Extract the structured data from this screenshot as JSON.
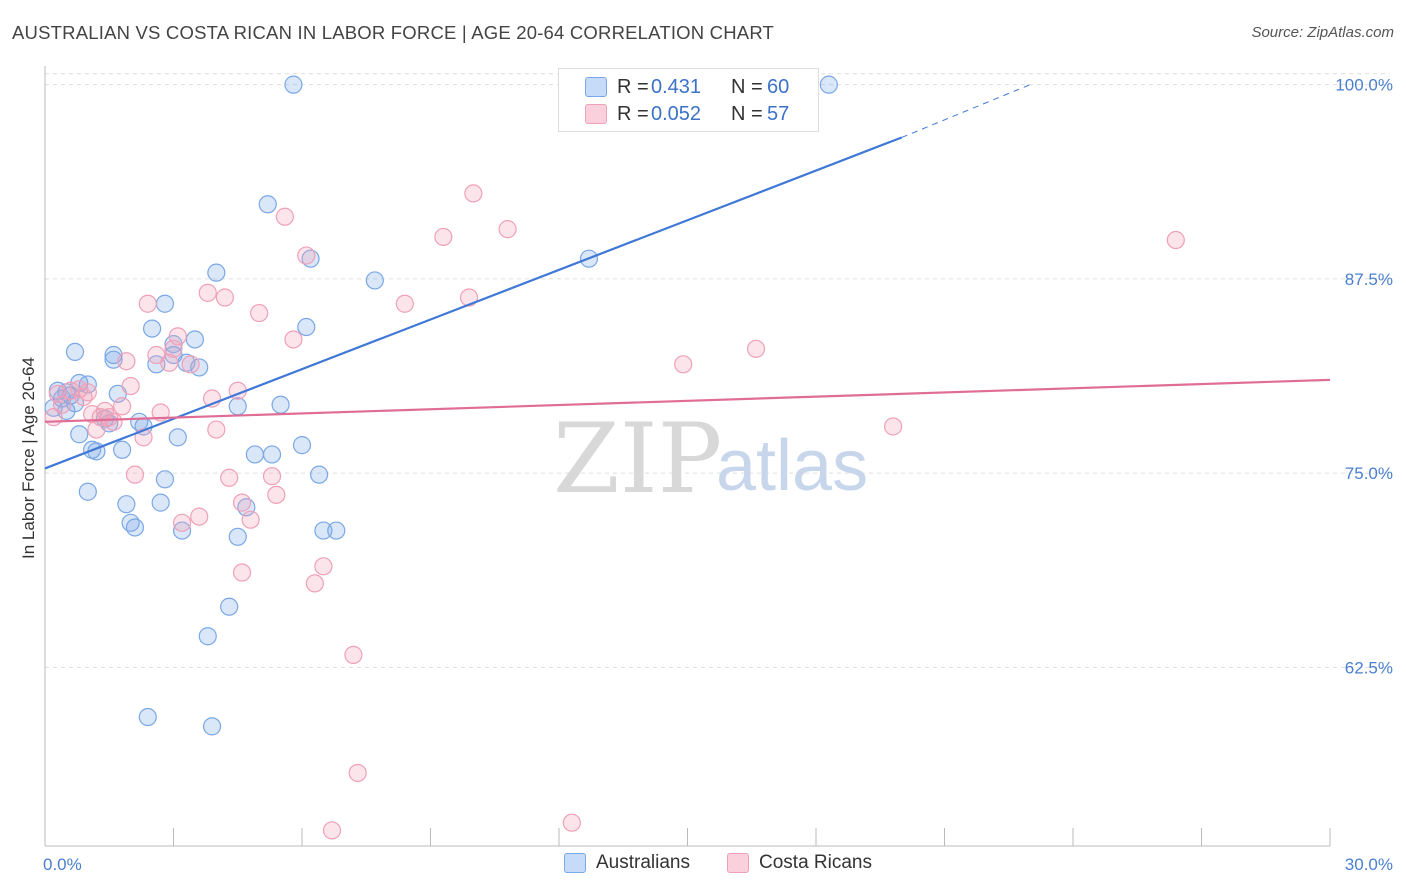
{
  "title": "AUSTRALIAN VS COSTA RICAN IN LABOR FORCE | AGE 20-64 CORRELATION CHART",
  "source": "Source: ZipAtlas.com",
  "watermark": {
    "zip": "ZIP",
    "atlas": "atlas"
  },
  "legend": {
    "rows": [
      {
        "r_label": "R =",
        "r_value": "0.431",
        "n_label": "N =",
        "n_value": "60",
        "color": "#7aa8e6"
      },
      {
        "r_label": "R =",
        "r_value": "0.052",
        "n_label": "N =",
        "n_value": "57",
        "color": "#f0a0b8"
      }
    ]
  },
  "bottom_legend": [
    {
      "label": "Australians",
      "color": "#7aa8e6"
    },
    {
      "label": "Costa Ricans",
      "color": "#f0a0b8"
    }
  ],
  "chart_data": {
    "type": "scatter",
    "title": "AUSTRALIAN VS COSTA RICAN IN LABOR FORCE | AGE 20-64 CORRELATION CHART",
    "xlabel": "",
    "ylabel": "In Labor Force | Age 20-64",
    "xlim": [
      0,
      30
    ],
    "ylim": [
      51,
      101.2
    ],
    "x_tick_labels": [
      {
        "value": 0,
        "label": "0.0%"
      },
      {
        "value": 30,
        "label": "30.0%"
      }
    ],
    "y_tick_labels": [
      {
        "value": 100,
        "label": "100.0%"
      },
      {
        "value": 87.5,
        "label": "87.5%"
      },
      {
        "value": 75,
        "label": "75.0%"
      },
      {
        "value": 62.5,
        "label": "62.5%"
      }
    ],
    "grid": true,
    "legend_position": "top-center",
    "series": [
      {
        "name": "Australians",
        "color": "#7aa8e6",
        "trend_color": "#3f78d6",
        "trend": {
          "x0": 0,
          "y0": 75.3,
          "x1": 20.0,
          "y1": 96.6,
          "dash_to_x": 23.0,
          "dash_to_y": 100.0
        },
        "points": [
          [
            0.2,
            79.2
          ],
          [
            0.3,
            80.3
          ],
          [
            0.4,
            79.8
          ],
          [
            0.5,
            79.0
          ],
          [
            0.6,
            80.0
          ],
          [
            0.7,
            79.5
          ],
          [
            0.5,
            80.2
          ],
          [
            0.8,
            80.8
          ],
          [
            0.7,
            82.8
          ],
          [
            0.8,
            77.5
          ],
          [
            1.0,
            80.7
          ],
          [
            1.0,
            73.8
          ],
          [
            1.1,
            76.5
          ],
          [
            1.2,
            76.4
          ],
          [
            1.4,
            78.5
          ],
          [
            1.5,
            78.2
          ],
          [
            1.6,
            82.6
          ],
          [
            1.6,
            82.3
          ],
          [
            1.7,
            80.1
          ],
          [
            1.8,
            76.5
          ],
          [
            1.9,
            73.0
          ],
          [
            2.0,
            71.8
          ],
          [
            2.1,
            71.5
          ],
          [
            2.2,
            78.3
          ],
          [
            2.3,
            78.0
          ],
          [
            2.4,
            59.3
          ],
          [
            2.5,
            84.3
          ],
          [
            2.6,
            82.0
          ],
          [
            2.7,
            73.1
          ],
          [
            2.8,
            85.9
          ],
          [
            2.8,
            74.6
          ],
          [
            3.0,
            82.6
          ],
          [
            3.0,
            83.3
          ],
          [
            3.1,
            77.3
          ],
          [
            3.2,
            71.3
          ],
          [
            3.3,
            82.1
          ],
          [
            3.5,
            83.6
          ],
          [
            3.6,
            81.8
          ],
          [
            3.8,
            64.5
          ],
          [
            3.9,
            58.7
          ],
          [
            4.0,
            87.9
          ],
          [
            4.3,
            66.4
          ],
          [
            4.5,
            79.3
          ],
          [
            4.5,
            70.9
          ],
          [
            4.7,
            72.8
          ],
          [
            4.9,
            76.2
          ],
          [
            5.2,
            92.3
          ],
          [
            5.3,
            76.2
          ],
          [
            5.5,
            79.4
          ],
          [
            5.8,
            100.0
          ],
          [
            6.0,
            76.8
          ],
          [
            6.1,
            84.4
          ],
          [
            6.2,
            88.8
          ],
          [
            6.4,
            74.9
          ],
          [
            6.5,
            71.3
          ],
          [
            6.8,
            71.3
          ],
          [
            7.7,
            87.4
          ],
          [
            12.3,
            100.0
          ],
          [
            12.7,
            88.8
          ],
          [
            18.3,
            100.0
          ]
        ]
      },
      {
        "name": "Costa Ricans",
        "color": "#f0a0b8",
        "trend_color": "#e06d96",
        "trend": {
          "x0": 0,
          "y0": 78.3,
          "x1": 30,
          "y1": 81.0
        },
        "points": [
          [
            0.2,
            78.6
          ],
          [
            0.4,
            79.4
          ],
          [
            0.6,
            80.3
          ],
          [
            0.8,
            80.4
          ],
          [
            0.9,
            79.9
          ],
          [
            1.0,
            80.2
          ],
          [
            1.2,
            77.8
          ],
          [
            1.3,
            78.6
          ],
          [
            1.4,
            79.0
          ],
          [
            1.5,
            78.6
          ],
          [
            1.6,
            78.3
          ],
          [
            1.8,
            79.3
          ],
          [
            1.9,
            82.2
          ],
          [
            2.1,
            74.9
          ],
          [
            2.3,
            77.3
          ],
          [
            2.4,
            85.9
          ],
          [
            2.6,
            82.6
          ],
          [
            2.7,
            78.9
          ],
          [
            2.9,
            82.1
          ],
          [
            3.0,
            83.0
          ],
          [
            3.1,
            83.8
          ],
          [
            3.2,
            71.8
          ],
          [
            3.4,
            82.0
          ],
          [
            3.6,
            72.2
          ],
          [
            3.8,
            86.6
          ],
          [
            3.9,
            79.8
          ],
          [
            4.0,
            77.8
          ],
          [
            4.2,
            86.3
          ],
          [
            4.3,
            74.7
          ],
          [
            4.5,
            80.3
          ],
          [
            4.6,
            73.1
          ],
          [
            4.8,
            72.0
          ],
          [
            4.6,
            68.6
          ],
          [
            5.0,
            85.3
          ],
          [
            5.3,
            74.8
          ],
          [
            5.4,
            73.6
          ],
          [
            5.6,
            91.5
          ],
          [
            5.8,
            83.6
          ],
          [
            6.1,
            89.0
          ],
          [
            6.3,
            67.9
          ],
          [
            6.5,
            69.0
          ],
          [
            6.7,
            52.0
          ],
          [
            7.2,
            63.3
          ],
          [
            7.3,
            55.7
          ],
          [
            8.4,
            85.9
          ],
          [
            9.3,
            90.2
          ],
          [
            9.9,
            86.3
          ],
          [
            10.0,
            93.0
          ],
          [
            10.8,
            90.7
          ],
          [
            12.3,
            52.5
          ],
          [
            14.9,
            82.0
          ],
          [
            16.6,
            83.0
          ],
          [
            19.8,
            78.0
          ],
          [
            26.4,
            90.0
          ],
          [
            0.3,
            80.1
          ],
          [
            1.1,
            78.8
          ],
          [
            2.0,
            80.6
          ]
        ]
      }
    ]
  }
}
